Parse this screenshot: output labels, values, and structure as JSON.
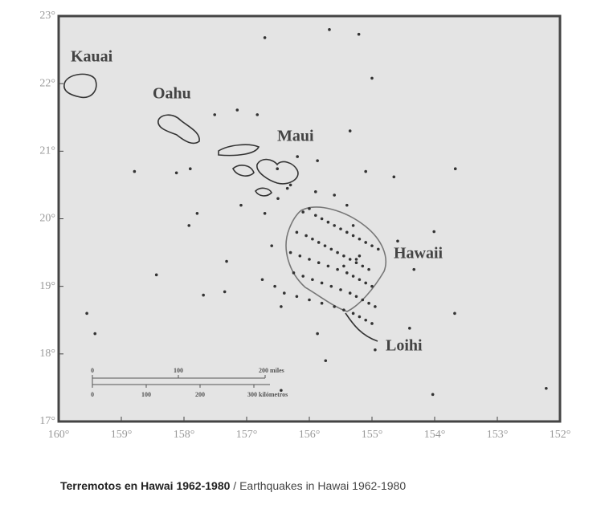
{
  "map": {
    "islands": [
      "Kauai",
      "Oahu",
      "Maui",
      "Hawaii",
      "Loihi"
    ],
    "xlim": [
      160,
      152
    ],
    "ylim": [
      17,
      23
    ],
    "xticks": [
      {
        "value": 160,
        "label": "160°"
      },
      {
        "value": 159,
        "label": "159°"
      },
      {
        "value": 158,
        "label": "158°"
      },
      {
        "value": 157,
        "label": "157°"
      },
      {
        "value": 156,
        "label": "156°"
      },
      {
        "value": 155,
        "label": "155°"
      },
      {
        "value": 154,
        "label": "154°"
      },
      {
        "value": 153,
        "label": "153°"
      },
      {
        "value": 152,
        "label": "152°"
      }
    ],
    "yticks": [
      {
        "value": 17,
        "label": "17°"
      },
      {
        "value": 18,
        "label": "18°"
      },
      {
        "value": 19,
        "label": "19°"
      },
      {
        "value": 20,
        "label": "20°"
      },
      {
        "value": 21,
        "label": "21°"
      },
      {
        "value": 22,
        "label": "22°"
      },
      {
        "value": 23,
        "label": "23°"
      }
    ],
    "earthquakes": {
      "lon": [
        156.71,
        155.68,
        155.21,
        155.0,
        158.79,
        157.51,
        157.15,
        156.83,
        155.35,
        153.67,
        154.65,
        155.1,
        159.55,
        159.42,
        158.44,
        157.69,
        157.35,
        157.32,
        157.92,
        157.79,
        158.12,
        157.9,
        154.03,
        153.68,
        152.22,
        154.4,
        154.95,
        155.74,
        155.87,
        154.59,
        154.33,
        154.01,
        156.45,
        157.09,
        156.71,
        156.51,
        156.19,
        155.87,
        156.1,
        156.0,
        155.9,
        155.8,
        155.7,
        155.6,
        155.5,
        155.4,
        155.3,
        155.2,
        155.1,
        155.0,
        154.9,
        156.2,
        156.05,
        155.95,
        155.85,
        155.75,
        155.65,
        155.55,
        155.45,
        155.35,
        155.25,
        155.15,
        155.05,
        156.3,
        156.15,
        156.0,
        155.85,
        155.7,
        155.55,
        155.4,
        155.3,
        155.2,
        155.1,
        155.0,
        156.25,
        156.1,
        155.95,
        155.8,
        155.65,
        155.5,
        155.35,
        155.25,
        155.15,
        155.05,
        154.95,
        156.4,
        156.2,
        156.0,
        155.8,
        155.6,
        155.45,
        155.3,
        155.2,
        155.1,
        155.0,
        156.5,
        156.35,
        156.6,
        156.75,
        156.55,
        156.45,
        156.3,
        155.9,
        155.6,
        155.4,
        155.3,
        155.25,
        155.45,
        155.2
      ],
      "lat": [
        22.68,
        22.8,
        22.73,
        22.08,
        20.7,
        21.54,
        21.61,
        21.54,
        21.3,
        20.74,
        20.62,
        20.7,
        18.6,
        18.3,
        19.17,
        18.87,
        18.92,
        19.37,
        19.9,
        20.08,
        20.68,
        20.74,
        17.4,
        18.6,
        17.49,
        18.38,
        18.06,
        17.9,
        18.3,
        19.67,
        19.25,
        19.81,
        17.46,
        20.2,
        20.08,
        20.74,
        20.92,
        20.86,
        20.1,
        20.15,
        20.05,
        20.0,
        19.95,
        19.9,
        19.85,
        19.8,
        19.75,
        19.7,
        19.65,
        19.6,
        19.55,
        19.8,
        19.75,
        19.7,
        19.65,
        19.6,
        19.55,
        19.5,
        19.45,
        19.4,
        19.35,
        19.3,
        19.25,
        19.5,
        19.45,
        19.4,
        19.35,
        19.3,
        19.25,
        19.2,
        19.15,
        19.1,
        19.05,
        19.0,
        19.2,
        19.15,
        19.1,
        19.05,
        19.0,
        18.95,
        18.9,
        18.85,
        18.8,
        18.75,
        18.7,
        18.9,
        18.85,
        18.8,
        18.75,
        18.7,
        18.65,
        18.6,
        18.55,
        18.5,
        18.45,
        20.3,
        20.45,
        19.6,
        19.1,
        19.0,
        18.7,
        20.5,
        20.4,
        20.35,
        20.2,
        19.9,
        19.4,
        19.3,
        19.45
      ]
    },
    "scale_bar": {
      "miles": [
        "0",
        "100",
        "200 miles"
      ],
      "km": [
        "0",
        "100",
        "200",
        "300 kilómetros"
      ]
    },
    "caption": {
      "spanish": "Terremotos en Hawai 1962-1980",
      "english": "/ Earthquakes in Hawai 1962-1980"
    }
  }
}
